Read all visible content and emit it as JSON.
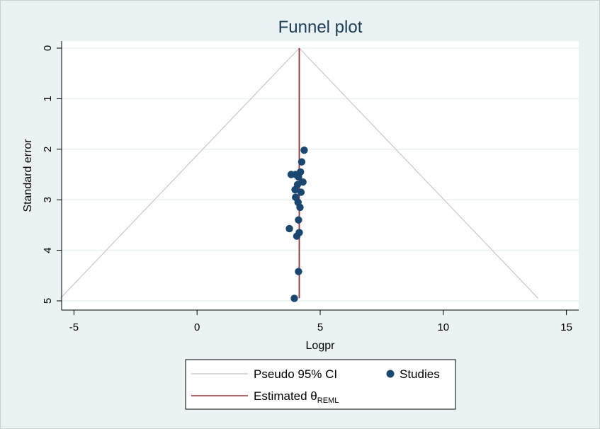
{
  "chart_data": {
    "type": "scatter",
    "title": "Funnel plot",
    "xlabel": "Logpr",
    "ylabel": "Standard error",
    "xlim": [
      -5.5,
      15.5
    ],
    "ylim": [
      5,
      0
    ],
    "y_reversed": true,
    "xticks": [
      -5,
      0,
      5,
      10,
      15
    ],
    "yticks": [
      0,
      1,
      2,
      3,
      4,
      5
    ],
    "grid": "horizontal",
    "estimate": 4.15,
    "ci_level": 1.96,
    "ci_se_max": 4.95,
    "points": [
      {
        "x": 4.35,
        "y": 2.02
      },
      {
        "x": 4.25,
        "y": 2.25
      },
      {
        "x": 4.2,
        "y": 2.45
      },
      {
        "x": 3.82,
        "y": 2.5
      },
      {
        "x": 4.0,
        "y": 2.5
      },
      {
        "x": 4.12,
        "y": 2.55
      },
      {
        "x": 4.3,
        "y": 2.65
      },
      {
        "x": 4.08,
        "y": 2.7
      },
      {
        "x": 3.98,
        "y": 2.8
      },
      {
        "x": 4.22,
        "y": 2.85
      },
      {
        "x": 4.0,
        "y": 2.95
      },
      {
        "x": 4.1,
        "y": 3.05
      },
      {
        "x": 4.18,
        "y": 3.15
      },
      {
        "x": 4.12,
        "y": 3.4
      },
      {
        "x": 3.75,
        "y": 3.57
      },
      {
        "x": 4.15,
        "y": 3.65
      },
      {
        "x": 4.05,
        "y": 3.72
      },
      {
        "x": 4.12,
        "y": 4.42
      },
      {
        "x": 3.95,
        "y": 4.95
      }
    ],
    "legend": {
      "placement": "bottom",
      "entries": [
        {
          "label": "Pseudo 95% CI",
          "kind": "line",
          "color": "#c8c8c8"
        },
        {
          "label": "Studies",
          "kind": "marker",
          "color": "#1a476f"
        },
        {
          "label": "Estimated θ",
          "subscript": "REML",
          "kind": "line",
          "color": "#90353b"
        }
      ]
    },
    "colors": {
      "marker": "#1a476f",
      "estimate_line": "#90353b",
      "ci_line": "#c8c8c8",
      "grid": "#eaf2f3"
    }
  }
}
